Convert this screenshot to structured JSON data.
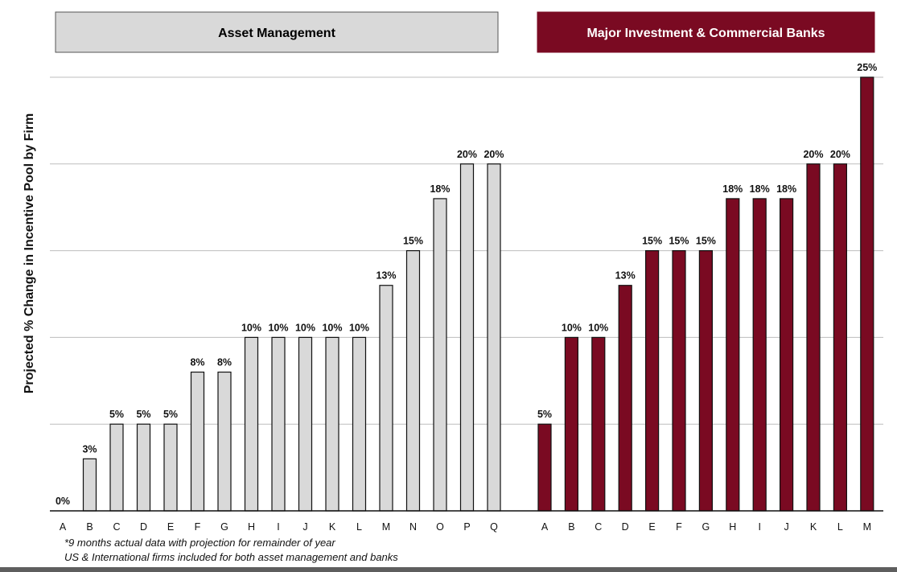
{
  "chart_data": [
    {
      "type": "bar",
      "title": "Asset Management",
      "ylabel": "Projected % Change in Incentive Pool by Firm",
      "ylim": [
        0,
        25
      ],
      "grid": true,
      "bar_color": "#d9d9d9",
      "header_color": "#d9d9d9",
      "header_text_color": "#000000",
      "categories": [
        "A",
        "B",
        "C",
        "D",
        "E",
        "F",
        "G",
        "H",
        "I",
        "J",
        "K",
        "L",
        "M",
        "N",
        "O",
        "P",
        "Q"
      ],
      "values": [
        0,
        3,
        5,
        5,
        5,
        8,
        8,
        10,
        10,
        10,
        10,
        10,
        13,
        15,
        18,
        20,
        20
      ],
      "labels": [
        "0%",
        "3%",
        "5%",
        "5%",
        "5%",
        "8%",
        "8%",
        "10%",
        "10%",
        "10%",
        "10%",
        "10%",
        "13%",
        "15%",
        "18%",
        "20%",
        "20%"
      ]
    },
    {
      "type": "bar",
      "title": "Major Investment & Commercial Banks",
      "ylim": [
        0,
        25
      ],
      "grid": true,
      "bar_color": "#7a0a22",
      "header_color": "#7a0a22",
      "header_text_color": "#ffffff",
      "categories": [
        "A",
        "B",
        "C",
        "D",
        "E",
        "F",
        "G",
        "H",
        "I",
        "J",
        "K",
        "L",
        "M"
      ],
      "values": [
        5,
        10,
        10,
        13,
        15,
        15,
        15,
        18,
        18,
        18,
        20,
        20,
        25
      ],
      "labels": [
        "5%",
        "10%",
        "10%",
        "13%",
        "15%",
        "15%",
        "15%",
        "18%",
        "18%",
        "18%",
        "20%",
        "20%",
        "25%"
      ]
    }
  ],
  "footnotes": [
    "*9 months actual data with projection for remainder of year",
    "US & International firms included for both asset management and banks"
  ]
}
